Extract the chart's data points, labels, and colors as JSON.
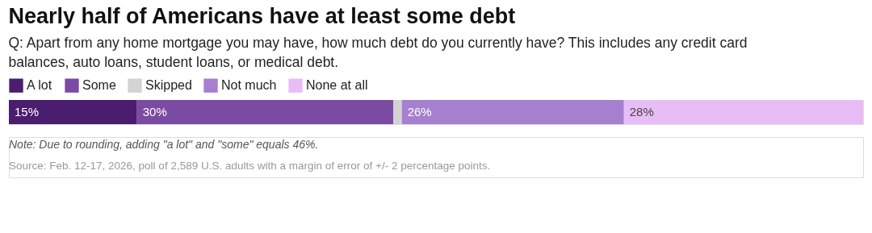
{
  "chart_data": {
    "type": "bar",
    "orientation": "horizontal",
    "stacked": true,
    "title": "Nearly half of Americans have at least some debt",
    "subtitle": "Q: Apart from any home mortgage you may have, how much debt do you currently have? This includes any credit card balances, auto loans, student loans, or medical debt.",
    "categories": [
      null
    ],
    "series": [
      {
        "name": "A lot",
        "color": "#4a1d6e",
        "values": [
          15
        ],
        "value_labels": [
          "15%"
        ]
      },
      {
        "name": "Some",
        "color": "#7b4ba3",
        "values": [
          30
        ],
        "value_labels": [
          "30%"
        ]
      },
      {
        "name": "Skipped",
        "color": "#d3d3d3",
        "values": [
          1
        ],
        "value_labels": [
          null
        ]
      },
      {
        "name": "Not much",
        "color": "#a77fcf",
        "values": [
          26
        ],
        "value_labels": [
          "26%"
        ]
      },
      {
        "name": "None at all",
        "color": "#e8bdf6",
        "values": [
          28
        ],
        "value_labels": [
          "28%"
        ]
      }
    ],
    "legend": "top left",
    "annotations": [
      "Note: Due to rounding, adding \"a lot\" and \"some\" equals 46%.",
      "Source: Feb. 12-17, 2026, poll of 2,589 U.S. adults with a margin of error of +/- 2 percentage points."
    ]
  }
}
